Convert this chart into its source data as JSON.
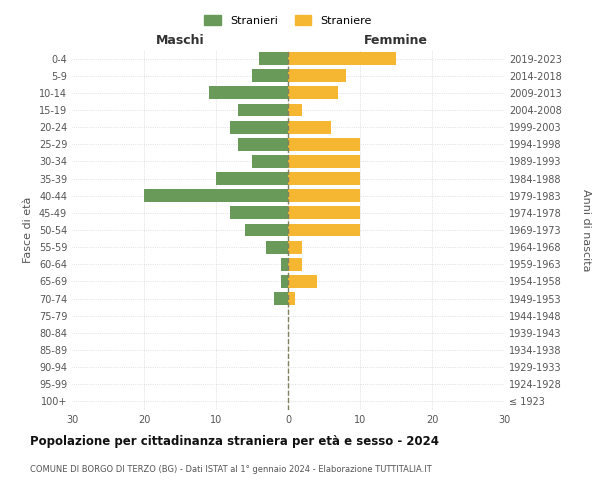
{
  "age_groups": [
    "100+",
    "95-99",
    "90-94",
    "85-89",
    "80-84",
    "75-79",
    "70-74",
    "65-69",
    "60-64",
    "55-59",
    "50-54",
    "45-49",
    "40-44",
    "35-39",
    "30-34",
    "25-29",
    "20-24",
    "15-19",
    "10-14",
    "5-9",
    "0-4"
  ],
  "birth_years": [
    "≤ 1923",
    "1924-1928",
    "1929-1933",
    "1934-1938",
    "1939-1943",
    "1944-1948",
    "1949-1953",
    "1954-1958",
    "1959-1963",
    "1964-1968",
    "1969-1973",
    "1974-1978",
    "1979-1983",
    "1984-1988",
    "1989-1993",
    "1994-1998",
    "1999-2003",
    "2004-2008",
    "2009-2013",
    "2014-2018",
    "2019-2023"
  ],
  "maschi": [
    0,
    0,
    0,
    0,
    0,
    0,
    2,
    1,
    1,
    3,
    6,
    8,
    20,
    10,
    5,
    7,
    8,
    7,
    11,
    5,
    4
  ],
  "femmine": [
    0,
    0,
    0,
    0,
    0,
    0,
    1,
    4,
    2,
    2,
    10,
    10,
    10,
    10,
    10,
    10,
    6,
    2,
    7,
    8,
    15
  ],
  "maschi_color": "#6a9a5a",
  "femmine_color": "#f5b731",
  "background_color": "#ffffff",
  "grid_color": "#cccccc",
  "center_line_color": "#808060",
  "title": "Popolazione per cittadinanza straniera per età e sesso - 2024",
  "subtitle": "COMUNE DI BORGO DI TERZO (BG) - Dati ISTAT al 1° gennaio 2024 - Elaborazione TUTTITALIA.IT",
  "xlabel_left": "Maschi",
  "xlabel_right": "Femmine",
  "ylabel_left": "Fasce di età",
  "ylabel_right": "Anni di nascita",
  "legend_maschi": "Stranieri",
  "legend_femmine": "Straniere",
  "xlim": 30
}
